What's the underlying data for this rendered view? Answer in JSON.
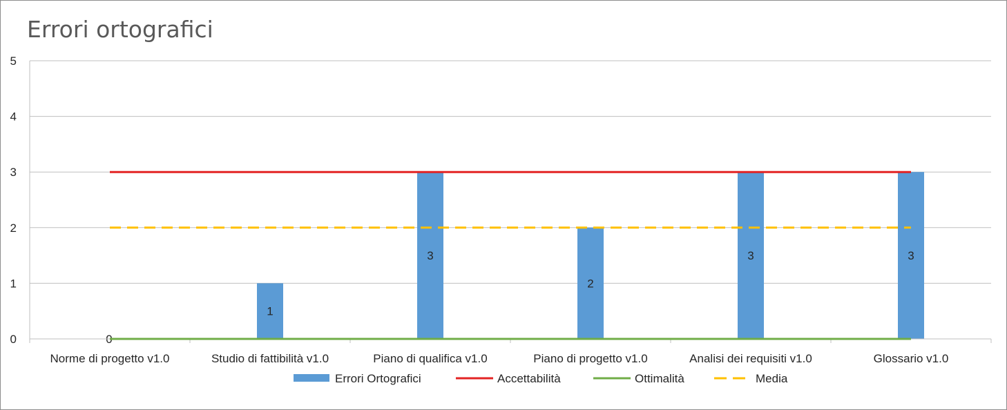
{
  "chart_data": {
    "type": "bar",
    "title": "Errori ortografici",
    "categories": [
      "Norme di progetto v1.0",
      "Studio di fattibilità v1.0",
      "Piano di qualifica v1.0",
      "Piano di progetto v1.0",
      "Analisi dei requisiti v1.0",
      "Glossario v1.0"
    ],
    "series": [
      {
        "name": "Errori Ortografici",
        "kind": "bar",
        "color": "#5b9bd5",
        "values": [
          0,
          1,
          3,
          2,
          3,
          3
        ]
      },
      {
        "name": "Accettabilità",
        "kind": "line",
        "color": "#e32323",
        "dash": false,
        "values": [
          3,
          3,
          3,
          3,
          3,
          3
        ]
      },
      {
        "name": "Ottimalità",
        "kind": "line",
        "color": "#70ad47",
        "dash": false,
        "values": [
          0,
          0,
          0,
          0,
          0,
          0
        ]
      },
      {
        "name": "Media",
        "kind": "line",
        "color": "#ffc000",
        "dash": true,
        "values": [
          2,
          2,
          2,
          2,
          2,
          2
        ]
      }
    ],
    "ylim": [
      0,
      5
    ],
    "yticks": [
      0,
      1,
      2,
      3,
      4,
      5
    ],
    "grid": true,
    "legend": "bottom",
    "xlabel": "",
    "ylabel": ""
  }
}
